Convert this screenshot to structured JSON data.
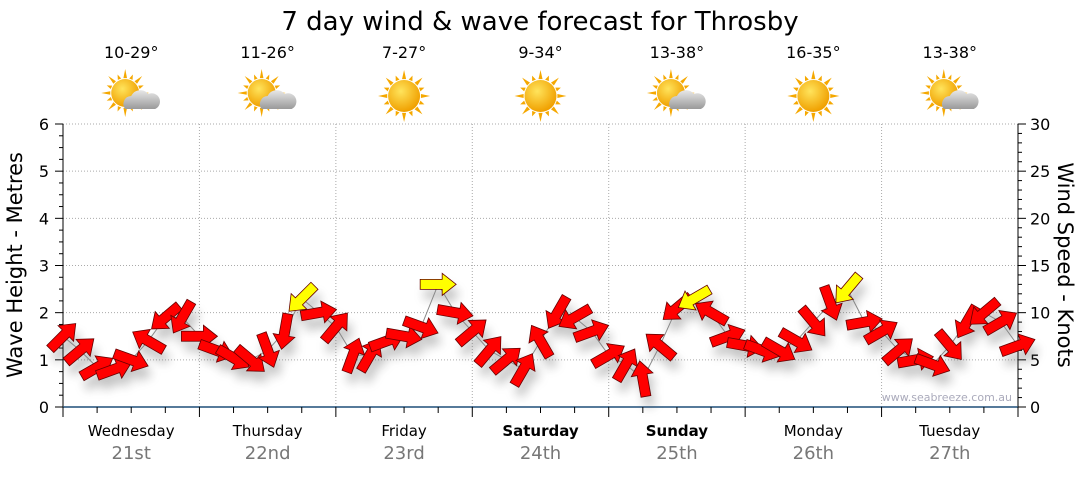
{
  "chart_data": {
    "type": "scatter",
    "title": "7 day wind & wave forecast for Throsby",
    "ylabel_left": "Wave Height - Metres",
    "ylabel_right": "Wind Speed - Knots",
    "ylim_left": [
      0,
      6
    ],
    "ylim_right": [
      0,
      30
    ],
    "yticks_left": [
      "0",
      "1",
      "2",
      "3",
      "4",
      "5",
      "6"
    ],
    "yticks_right": [
      "0",
      "5",
      "10",
      "15",
      "20",
      "25",
      "30"
    ],
    "grid": true,
    "watermark": "www.seabreeze.com.au",
    "days": [
      {
        "name": "Wednesday",
        "date": "21st",
        "temp": "10-29°",
        "weather": "partly-cloudy",
        "bold": false
      },
      {
        "name": "Thursday",
        "date": "22nd",
        "temp": "11-26°",
        "weather": "partly-cloudy",
        "bold": false
      },
      {
        "name": "Friday",
        "date": "23rd",
        "temp": "7-27°",
        "weather": "sunny",
        "bold": false
      },
      {
        "name": "Saturday",
        "date": "24th",
        "temp": "9-34°",
        "weather": "sunny",
        "bold": true
      },
      {
        "name": "Sunday",
        "date": "25th",
        "temp": "13-38°",
        "weather": "partly-cloudy",
        "bold": true
      },
      {
        "name": "Monday",
        "date": "26th",
        "temp": "16-35°",
        "weather": "sunny",
        "bold": false
      },
      {
        "name": "Tuesday",
        "date": "27th",
        "temp": "13-38°",
        "weather": "partly-cloudy",
        "bold": false
      }
    ],
    "wind_series": {
      "name": "Wind",
      "x_unit": "hours from start (3-hourly)",
      "x": [
        0,
        3,
        6,
        9,
        12,
        15,
        18,
        21,
        24,
        27,
        30,
        33,
        36,
        39,
        42,
        45,
        48,
        51,
        54,
        57,
        60,
        63,
        66,
        69,
        72,
        75,
        78,
        81,
        84,
        87,
        90,
        93,
        96,
        99,
        102,
        105,
        108,
        111,
        114,
        117,
        120,
        123,
        126,
        129,
        132,
        135,
        138,
        141,
        144,
        147,
        150,
        153,
        156,
        159,
        162,
        165,
        168
      ],
      "speed_knots": [
        7.5,
        6,
        4.2,
        4,
        5,
        7,
        9.5,
        9.5,
        7.5,
        6,
        5.2,
        5,
        6,
        8,
        11.5,
        10,
        8.5,
        5.5,
        5.5,
        7,
        7.5,
        8.5,
        13,
        10,
        8,
        6,
        5,
        4,
        7,
        10,
        9.5,
        8,
        5.5,
        4.5,
        3,
        6.5,
        10.5,
        11.5,
        10,
        7.5,
        6.5,
        6,
        6,
        7,
        9,
        11,
        12.5,
        9,
        8,
        6,
        5,
        4.5,
        6.5,
        9,
        10,
        9,
        6.5
      ],
      "direction_deg": [
        135,
        140,
        150,
        160,
        200,
        30,
        320,
        300,
        180,
        200,
        210,
        220,
        250,
        280,
        315,
        170,
        130,
        110,
        120,
        160,
        190,
        200,
        180,
        190,
        140,
        130,
        140,
        120,
        60,
        300,
        330,
        160,
        150,
        120,
        80,
        40,
        320,
        330,
        30,
        160,
        190,
        200,
        210,
        210,
        230,
        250,
        310,
        170,
        150,
        140,
        170,
        200,
        230,
        300,
        320,
        150,
        160
      ],
      "color_flag": [
        "red",
        "red",
        "red",
        "red",
        "red",
        "red",
        "red",
        "red",
        "red",
        "red",
        "red",
        "red",
        "red",
        "red",
        "yellow",
        "red",
        "red",
        "red",
        "red",
        "red",
        "red",
        "red",
        "yellow",
        "red",
        "red",
        "red",
        "red",
        "red",
        "red",
        "red",
        "red",
        "red",
        "red",
        "red",
        "red",
        "red",
        "red",
        "yellow",
        "red",
        "red",
        "red",
        "red",
        "red",
        "red",
        "red",
        "red",
        "yellow",
        "red",
        "red",
        "red",
        "red",
        "red",
        "red",
        "red",
        "red",
        "red",
        "red"
      ]
    },
    "colors": {
      "wind_strong": "#ff0000",
      "wind_light": "#ffff00",
      "axis": "#1f4e79",
      "date_text": "#777777"
    }
  }
}
